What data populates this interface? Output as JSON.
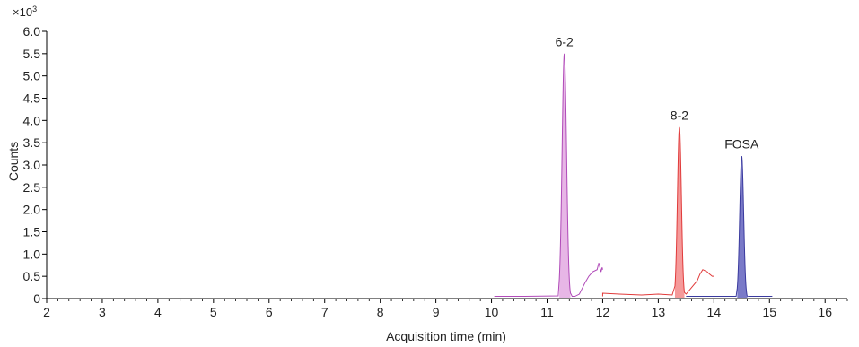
{
  "chart_data": {
    "type": "line",
    "title": "",
    "xlabel": "Acquisition time (min)",
    "ylabel": "Counts",
    "y_multiplier": {
      "base": "×10",
      "exponent": "3"
    },
    "xlim": [
      2,
      16.4
    ],
    "ylim": [
      0,
      6.0
    ],
    "x_ticks": [
      "2",
      "3",
      "4",
      "5",
      "6",
      "7",
      "8",
      "9",
      "10",
      "11",
      "12",
      "13",
      "14",
      "15",
      "16"
    ],
    "y_ticks": [
      "0",
      "0.5",
      "1.0",
      "1.5",
      "2.0",
      "2.5",
      "3.0",
      "3.5",
      "4.0",
      "4.5",
      "5.0",
      "5.5",
      "6.0"
    ],
    "grid": false,
    "series": [
      {
        "color": "#b04ab8",
        "fill": "#e7b6e6",
        "annotation": "6-2",
        "peak": {
          "center": 11.31,
          "height": 5.5,
          "width": 0.04,
          "fill_from": 11.22,
          "fill_to": 11.42
        },
        "baseline": [
          [
            10.05,
            0.05
          ],
          [
            10.6,
            0.05
          ],
          [
            11.2,
            0.06
          ],
          [
            11.45,
            0.05
          ],
          [
            11.5,
            0.05
          ],
          [
            11.58,
            0.1
          ],
          [
            11.62,
            0.2
          ],
          [
            11.68,
            0.35
          ],
          [
            11.75,
            0.5
          ],
          [
            11.82,
            0.6
          ],
          [
            11.9,
            0.65
          ],
          [
            11.93,
            0.8
          ],
          [
            11.97,
            0.6
          ],
          [
            11.99,
            0.7
          ],
          [
            12.0,
            0.65
          ]
        ],
        "annotation_at": [
          11.31,
          5.55
        ]
      },
      {
        "color": "#e03a3a",
        "fill": "#f59a9a",
        "annotation": "8-2",
        "peak": {
          "center": 13.38,
          "height": 3.85,
          "width": 0.035,
          "fill_from": 13.3,
          "fill_to": 13.47
        },
        "baseline": [
          [
            12.0,
            0.05
          ],
          [
            12.0,
            0.12
          ],
          [
            12.3,
            0.1
          ],
          [
            12.7,
            0.08
          ],
          [
            13.0,
            0.1
          ],
          [
            13.25,
            0.08
          ],
          [
            13.5,
            0.1
          ],
          [
            13.6,
            0.25
          ],
          [
            13.7,
            0.4
          ],
          [
            13.75,
            0.55
          ],
          [
            13.8,
            0.65
          ],
          [
            13.88,
            0.6
          ],
          [
            13.92,
            0.55
          ],
          [
            13.97,
            0.5
          ],
          [
            14.0,
            0.5
          ]
        ],
        "annotation_at": [
          13.38,
          3.9
        ]
      },
      {
        "color": "#3a3a9e",
        "fill": "#7a7ac8",
        "annotation": "FOSA",
        "peak": {
          "center": 14.5,
          "height": 3.2,
          "width": 0.035,
          "fill_from": 14.42,
          "fill_to": 14.6
        },
        "baseline": [
          [
            13.5,
            0.05
          ],
          [
            14.0,
            0.05
          ],
          [
            14.4,
            0.05
          ],
          [
            14.65,
            0.05
          ],
          [
            15.0,
            0.05
          ],
          [
            15.05,
            0.05
          ]
        ],
        "annotation_at": [
          14.5,
          3.25
        ]
      }
    ]
  }
}
